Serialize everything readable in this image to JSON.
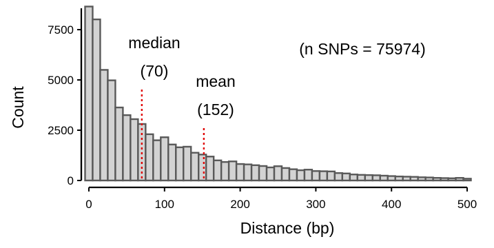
{
  "chart_data": {
    "type": "bar",
    "subtype": "histogram",
    "xlabel": "Distance (bp)",
    "ylabel": "Count",
    "xlim": [
      -10,
      520
    ],
    "ylim": [
      0,
      8700
    ],
    "x_ticks": [
      0,
      100,
      200,
      300,
      400,
      500
    ],
    "y_ticks": [
      0,
      2500,
      5000,
      7500
    ],
    "bin_width": 10,
    "bin_starts": [
      -5,
      5,
      15,
      25,
      35,
      45,
      55,
      65,
      75,
      85,
      95,
      105,
      115,
      125,
      135,
      145,
      155,
      165,
      175,
      185,
      195,
      205,
      215,
      225,
      235,
      245,
      255,
      265,
      275,
      285,
      295,
      305,
      315,
      325,
      335,
      345,
      355,
      365,
      375,
      385,
      395,
      405,
      415,
      425,
      435,
      445,
      455,
      465,
      475,
      485,
      495
    ],
    "values": [
      8650,
      8010,
      5500,
      4980,
      3630,
      3250,
      3050,
      2810,
      2300,
      2000,
      2150,
      1790,
      1650,
      1680,
      1380,
      1290,
      1190,
      1000,
      920,
      950,
      820,
      800,
      760,
      720,
      650,
      710,
      620,
      560,
      510,
      540,
      470,
      460,
      450,
      370,
      350,
      300,
      280,
      270,
      260,
      240,
      220,
      200,
      190,
      180,
      160,
      150,
      130,
      120,
      110,
      130,
      90
    ],
    "bar_fill": "#d3d3d3",
    "bar_stroke": "#595959",
    "reference_lines": [
      {
        "x": 70,
        "label_top": "median",
        "label_bottom": "(70)",
        "color": "#e00000"
      },
      {
        "x": 152,
        "label_top": "mean",
        "label_bottom": "(152)",
        "color": "#e00000"
      }
    ],
    "annotation": "(n SNPs = 75974)",
    "grid": false
  }
}
